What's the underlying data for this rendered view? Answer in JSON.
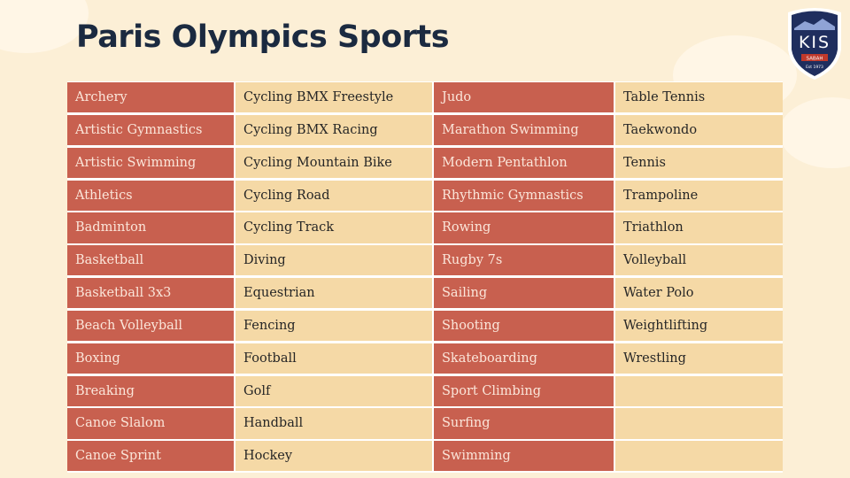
{
  "header": {
    "title": "Paris Olympics Sports"
  },
  "logo": {
    "name": "KIS",
    "place": "SABAH",
    "founded": "Est 1973"
  },
  "table": {
    "columns": [
      [
        "Archery",
        "Artistic Gymnastics",
        "Artistic Swimming",
        "Athletics",
        "Badminton",
        "Basketball",
        "Basketball 3x3",
        "Beach Volleyball",
        "Boxing",
        "Breaking",
        "Canoe Slalom",
        "Canoe Sprint"
      ],
      [
        "Cycling BMX Freestyle",
        "Cycling BMX Racing",
        "Cycling Mountain Bike",
        "Cycling Road",
        "Cycling Track",
        "Diving",
        "Equestrian",
        "Fencing",
        "Football",
        "Golf",
        "Handball",
        "Hockey"
      ],
      [
        "Judo",
        "Marathon Swimming",
        "Modern Pentathlon",
        "Rhythmic Gymnastics",
        "Rowing",
        "Rugby 7s",
        "Sailing",
        "Shooting",
        "Skateboarding",
        "Sport Climbing",
        "Surfing",
        "Swimming"
      ],
      [
        "Table Tennis",
        "Taekwondo",
        "Tennis",
        "Trampoline",
        "Triathlon",
        "Volleyball",
        "Water Polo",
        "Weightlifting",
        "Wrestling"
      ]
    ]
  }
}
